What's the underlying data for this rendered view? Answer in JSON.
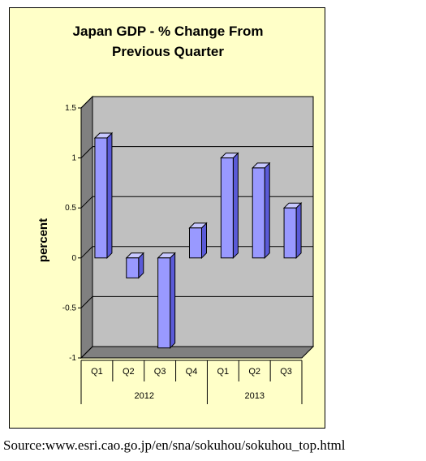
{
  "chart_data": {
    "type": "bar",
    "title_lines": [
      "Japan GDP - % Change From",
      "Previous Quarter"
    ],
    "ylabel": "percent",
    "xlabel": "",
    "categories": [
      "Q1",
      "Q2",
      "Q3",
      "Q4",
      "Q1",
      "Q2",
      "Q3"
    ],
    "groups": [
      {
        "label": "2012",
        "count": 4
      },
      {
        "label": "2013",
        "count": 3
      }
    ],
    "values": [
      1.2,
      -0.2,
      -0.9,
      0.3,
      1.0,
      0.9,
      0.5
    ],
    "ylim": [
      -1,
      1.5
    ],
    "yticks": [
      1.5,
      1,
      0.5,
      0,
      -0.5,
      -1
    ],
    "ytick_labels": [
      "1.5",
      "1",
      "0.5",
      "0",
      "-0.5",
      "-1"
    ],
    "grid": true,
    "three_d": true,
    "colors": {
      "bar_front": "#9999ff",
      "bar_side": "#5a5ad8",
      "bar_top": "#c8c8ff",
      "wall": "#c0c0c0",
      "floor": "#808080",
      "background": "#ffffc8"
    }
  },
  "source": "Source:www.esri.cao.go.jp/en/sna/sokuhou/sokuhou_top.html"
}
